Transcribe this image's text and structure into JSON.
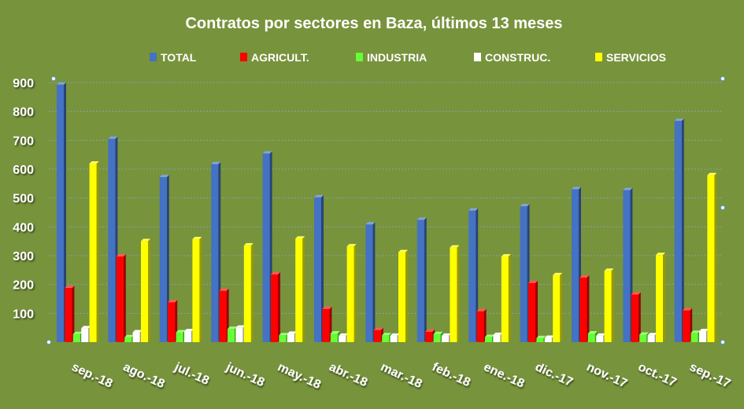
{
  "chart_data": {
    "type": "bar",
    "title": "Contratos por sectores en Baza, últimos 13 meses",
    "categories": [
      "sep.-18",
      "ago.-18",
      "jul.-18",
      "jun.-18",
      "may.-18",
      "abr.-18",
      "mar.-18",
      "feb.-18",
      "ene.-18",
      "dic.-17",
      "nov.-17",
      "oct.-17",
      "sep.-17"
    ],
    "series": [
      {
        "name": "TOTAL",
        "color": "#4472c4",
        "values": [
          893,
          705,
          572,
          617,
          654,
          502,
          408,
          424,
          456,
          471,
          530,
          527,
          767
        ]
      },
      {
        "name": "AGRICULT.",
        "color": "#ff0000",
        "values": [
          188,
          297,
          138,
          178,
          235,
          115,
          42,
          36,
          107,
          205,
          224,
          165,
          110
        ]
      },
      {
        "name": "INDUSTRIA",
        "color": "#66ff33",
        "values": [
          28,
          17,
          34,
          46,
          24,
          30,
          24,
          28,
          18,
          14,
          30,
          26,
          32
        ]
      },
      {
        "name": "CONSTRUC.",
        "color": "#ffffff",
        "values": [
          48,
          34,
          38,
          50,
          29,
          22,
          22,
          22,
          25,
          15,
          22,
          24,
          38
        ]
      },
      {
        "name": "SERVICIOS",
        "color": "#ffff00",
        "values": [
          619,
          350,
          357,
          335,
          359,
          332,
          312,
          328,
          297,
          232,
          247,
          302,
          579
        ]
      }
    ],
    "yticks": [
      "100",
      "200",
      "300",
      "400",
      "500",
      "600",
      "700",
      "800",
      "900"
    ],
    "ylim": [
      0,
      900
    ],
    "legend_position": "top",
    "grid": true
  }
}
